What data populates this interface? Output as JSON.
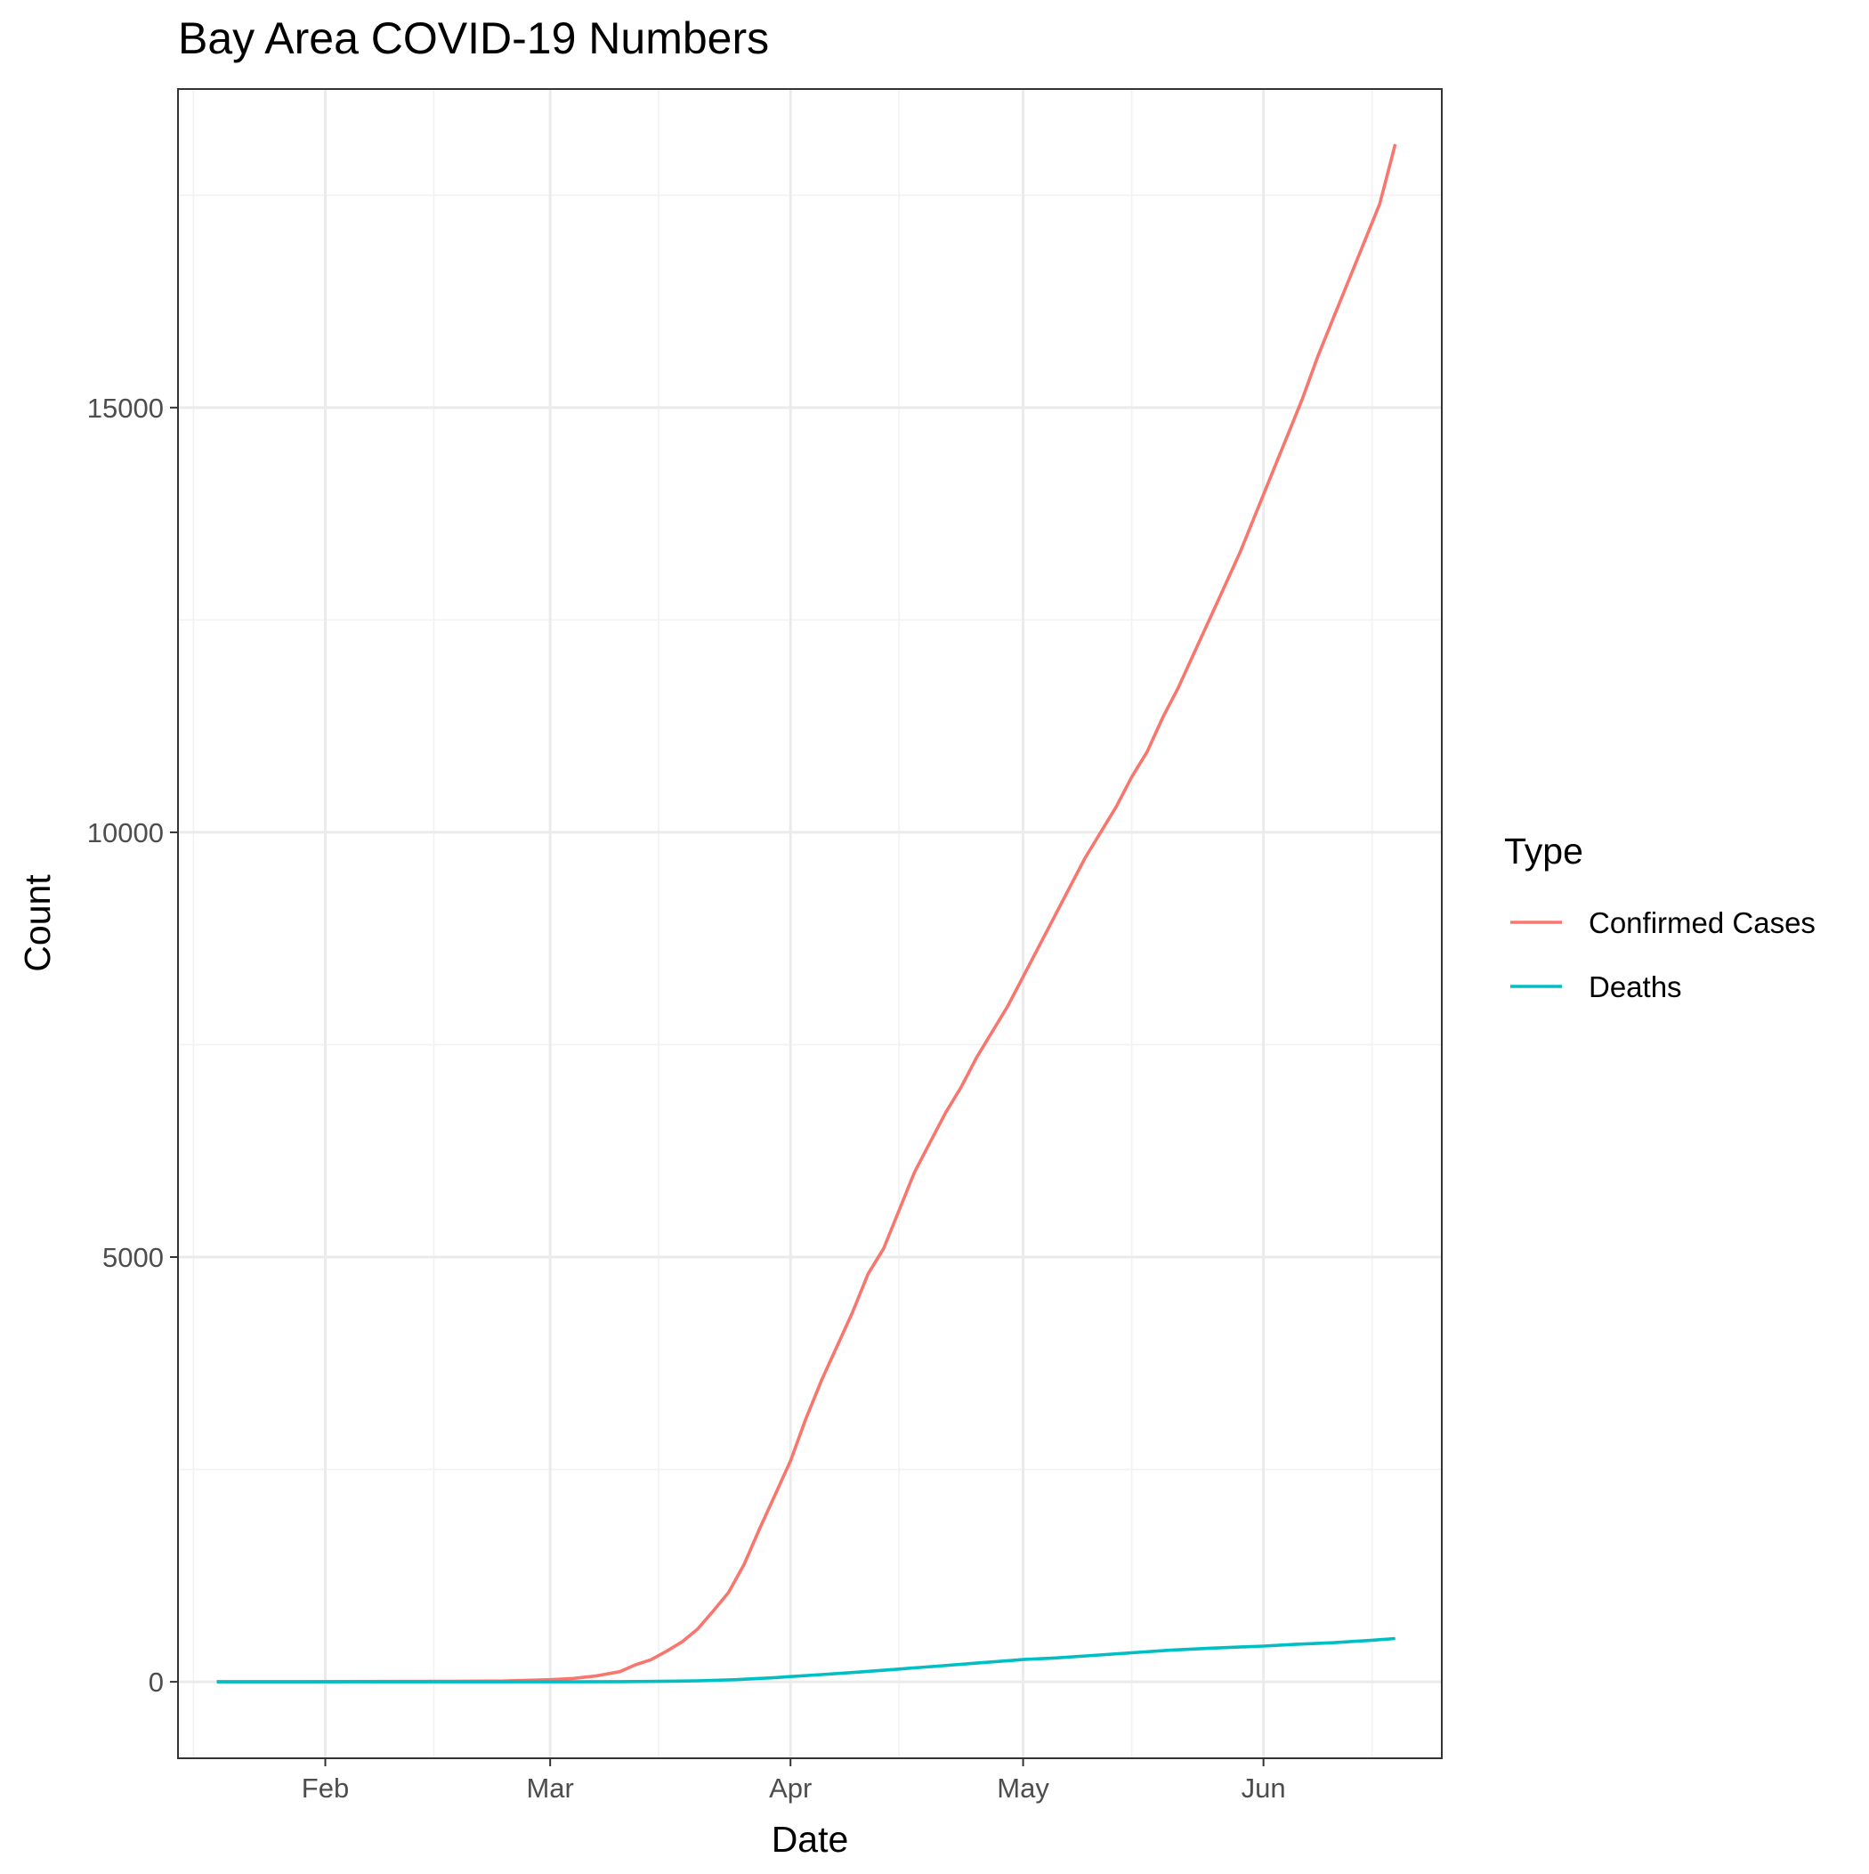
{
  "chart_data": {
    "type": "line",
    "title": "Bay Area COVID-19 Numbers",
    "xlabel": "Date",
    "ylabel": "Count",
    "x_type": "date",
    "xlim": [
      "2020-01-13",
      "2020-06-24"
    ],
    "ylim": [
      -900,
      18750
    ],
    "x_ticks": [
      {
        "date": "2020-02-01",
        "label": "Feb"
      },
      {
        "date": "2020-03-01",
        "label": "Mar"
      },
      {
        "date": "2020-04-01",
        "label": "Apr"
      },
      {
        "date": "2020-05-01",
        "label": "May"
      },
      {
        "date": "2020-06-01",
        "label": "Jun"
      }
    ],
    "x_minor_ticks": [
      "2020-01-15",
      "2020-02-15",
      "2020-03-15",
      "2020-04-15",
      "2020-05-15",
      "2020-06-15"
    ],
    "y_ticks": [
      0,
      5000,
      10000,
      15000
    ],
    "y_minor_ticks": [
      2500,
      7500,
      12500,
      17500
    ],
    "grid": true,
    "legend": {
      "title": "Type",
      "position": "right"
    },
    "series": [
      {
        "name": "Confirmed Cases",
        "color": "#F8766D",
        "points": [
          [
            "2020-01-18",
            0
          ],
          [
            "2020-02-01",
            2
          ],
          [
            "2020-02-15",
            5
          ],
          [
            "2020-02-24",
            10
          ],
          [
            "2020-03-01",
            25
          ],
          [
            "2020-03-04",
            40
          ],
          [
            "2020-03-07",
            70
          ],
          [
            "2020-03-10",
            120
          ],
          [
            "2020-03-12",
            200
          ],
          [
            "2020-03-14",
            260
          ],
          [
            "2020-03-16",
            360
          ],
          [
            "2020-03-18",
            470
          ],
          [
            "2020-03-20",
            620
          ],
          [
            "2020-03-22",
            830
          ],
          [
            "2020-03-24",
            1050
          ],
          [
            "2020-03-26",
            1380
          ],
          [
            "2020-03-28",
            1800
          ],
          [
            "2020-03-30",
            2200
          ],
          [
            "2020-04-01",
            2600
          ],
          [
            "2020-04-03",
            3100
          ],
          [
            "2020-04-05",
            3550
          ],
          [
            "2020-04-07",
            3950
          ],
          [
            "2020-04-09",
            4350
          ],
          [
            "2020-04-11",
            4800
          ],
          [
            "2020-04-13",
            5100
          ],
          [
            "2020-04-15",
            5550
          ],
          [
            "2020-04-17",
            6000
          ],
          [
            "2020-04-19",
            6350
          ],
          [
            "2020-04-21",
            6700
          ],
          [
            "2020-04-23",
            7000
          ],
          [
            "2020-04-25",
            7350
          ],
          [
            "2020-04-27",
            7650
          ],
          [
            "2020-04-29",
            7950
          ],
          [
            "2020-05-01",
            8300
          ],
          [
            "2020-05-03",
            8650
          ],
          [
            "2020-05-05",
            9000
          ],
          [
            "2020-05-07",
            9350
          ],
          [
            "2020-05-09",
            9700
          ],
          [
            "2020-05-11",
            10000
          ],
          [
            "2020-05-13",
            10300
          ],
          [
            "2020-05-15",
            10650
          ],
          [
            "2020-05-17",
            10950
          ],
          [
            "2020-05-19",
            11350
          ],
          [
            "2020-05-21",
            11700
          ],
          [
            "2020-05-23",
            12100
          ],
          [
            "2020-05-25",
            12500
          ],
          [
            "2020-05-27",
            12900
          ],
          [
            "2020-05-29",
            13300
          ],
          [
            "2020-05-31",
            13750
          ],
          [
            "2020-06-02",
            14200
          ],
          [
            "2020-06-04",
            14650
          ],
          [
            "2020-06-06",
            15100
          ],
          [
            "2020-06-08",
            15600
          ],
          [
            "2020-06-10",
            16050
          ],
          [
            "2020-06-12",
            16500
          ],
          [
            "2020-06-14",
            16950
          ],
          [
            "2020-06-16",
            17400
          ],
          [
            "2020-06-18",
            18100
          ]
        ]
      },
      {
        "name": "Deaths",
        "color": "#00BFC4",
        "points": [
          [
            "2020-01-18",
            0
          ],
          [
            "2020-02-15",
            0
          ],
          [
            "2020-03-01",
            0
          ],
          [
            "2020-03-10",
            2
          ],
          [
            "2020-03-15",
            5
          ],
          [
            "2020-03-20",
            12
          ],
          [
            "2020-03-25",
            25
          ],
          [
            "2020-03-30",
            50
          ],
          [
            "2020-04-01",
            62
          ],
          [
            "2020-04-05",
            85
          ],
          [
            "2020-04-10",
            115
          ],
          [
            "2020-04-15",
            150
          ],
          [
            "2020-04-20",
            185
          ],
          [
            "2020-04-25",
            220
          ],
          [
            "2020-05-01",
            262
          ],
          [
            "2020-05-05",
            280
          ],
          [
            "2020-05-10",
            310
          ],
          [
            "2020-05-15",
            342
          ],
          [
            "2020-05-20",
            372
          ],
          [
            "2020-05-25",
            395
          ],
          [
            "2020-06-01",
            420
          ],
          [
            "2020-06-05",
            440
          ],
          [
            "2020-06-10",
            460
          ],
          [
            "2020-06-15",
            490
          ],
          [
            "2020-06-18",
            510
          ]
        ]
      }
    ]
  }
}
